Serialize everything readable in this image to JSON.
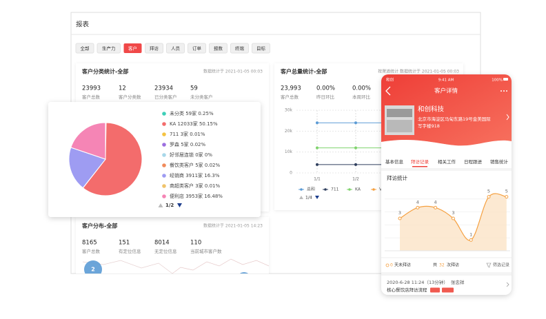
{
  "window": {
    "title": "报表",
    "tabs": [
      "全部",
      "生产力",
      "客户",
      "拜访",
      "人员",
      "订单",
      "报数",
      "终端",
      "目标"
    ]
  },
  "classification_card": {
    "title": "客户分类统计-全部",
    "timestamp": "数据统计于 2021-01-05 00:03",
    "stats": [
      {
        "value": 23993,
        "label": "客户总数"
      },
      {
        "value": 12,
        "label": "客户分类数"
      },
      {
        "value": 23934,
        "label": "已分类客户"
      },
      {
        "value": 59,
        "label": "未分类客户"
      }
    ]
  },
  "pie_card": {
    "chart": {
      "type": "pie",
      "series": [
        {
          "label": "未分类 59家 0.25%",
          "value": 0.25,
          "color": "#3ecfb8"
        },
        {
          "label": "KA 12033家 50.15%",
          "value": 50.15,
          "color": "#f36c6c"
        },
        {
          "label": "711 3家 0.01%",
          "value": 0.01,
          "color": "#f5c342"
        },
        {
          "label": "罗森 5家 0.02%",
          "value": 0.02,
          "color": "#9c6fe0"
        },
        {
          "label": "好邻居连锁 0家 0%",
          "value": 0,
          "color": "#a8d8ea"
        },
        {
          "label": "餐饮类客户 5家 0.02%",
          "value": 0.02,
          "color": "#f08b5b"
        },
        {
          "label": "经销商 3911家 16.3%",
          "value": 16.3,
          "color": "#9e9cf2"
        },
        {
          "label": "商超类客户 3家 0.01%",
          "value": 0.01,
          "color": "#f0c36b"
        },
        {
          "label": "便利店 3953家 16.48%",
          "value": 16.48,
          "color": "#f585b5"
        }
      ],
      "page": "1/2"
    }
  },
  "total_card": {
    "title": "客户总量统计-全部",
    "timestamp": "按渠道统计   数据统计于 2021-01-05 00:03",
    "stats": [
      {
        "value": "23,993",
        "label": "客户总数"
      },
      {
        "value": "0.00%",
        "label": "昨日环比"
      },
      {
        "value": "0.00%",
        "label": "本周环比"
      }
    ],
    "chart": {
      "type": "line",
      "categories": [
        "1/1",
        "1/2",
        null
      ],
      "ylim": [
        0,
        30000
      ],
      "yticks": [
        0,
        {
          "value": 10000,
          "label": "10k"
        },
        {
          "value": 20000,
          "label": "20k"
        },
        {
          "value": 30000,
          "label": "30k"
        }
      ],
      "grid": true,
      "series": [
        {
          "name": "总和",
          "color": "#5b9bd5",
          "values": [
            24000,
            24000,
            24000
          ]
        },
        {
          "name": "711",
          "color": "#2f3f5e",
          "values": [
            4000,
            4000,
            4000
          ]
        },
        {
          "name": "KA",
          "color": "#7ed36b",
          "values": [
            12000,
            12000,
            12000
          ]
        },
        {
          "name": "V",
          "color": "#f5a040",
          "values": [
            null,
            null,
            null
          ]
        }
      ],
      "page": "1/4"
    }
  },
  "distribution_card": {
    "title": "客户分布-全部",
    "timestamp": "数据统计于 2021-01-05 14:23",
    "stats": [
      {
        "value": 8165,
        "label": "客户总数"
      },
      {
        "value": 151,
        "label": "有定位信息"
      },
      {
        "value": 8014,
        "label": "无定位信息"
      },
      {
        "value": 110,
        "label": "当前城市客户数"
      }
    ],
    "bubble": 2
  },
  "phone": {
    "status": {
      "carrier": "和创",
      "time": "9:41 AM",
      "battery": "100%"
    },
    "title": "客户详情",
    "company": {
      "name": "和创科技",
      "address": [
        "北京市海淀区马甸东路19号金美国际",
        "写字楼918"
      ]
    },
    "tabs": [
      "基本信息",
      "拜访记录",
      "相关工作",
      "日程跟进",
      "销售统计"
    ],
    "section_title": "拜访统计",
    "chart": {
      "type": "line",
      "values": [
        3,
        4,
        4,
        3,
        1,
        5,
        5
      ],
      "ylim": [
        0,
        6
      ]
    },
    "summary": {
      "days": 0,
      "days_label": "天未拜访",
      "total_prefix": "共",
      "total": 32,
      "total_label": "次拜访",
      "filter": "筛选记录"
    },
    "record": {
      "time": "2020-6-28 11:24（13分钟）",
      "person": "张忠祥",
      "title": "核心餐饮店拜访流程"
    }
  }
}
